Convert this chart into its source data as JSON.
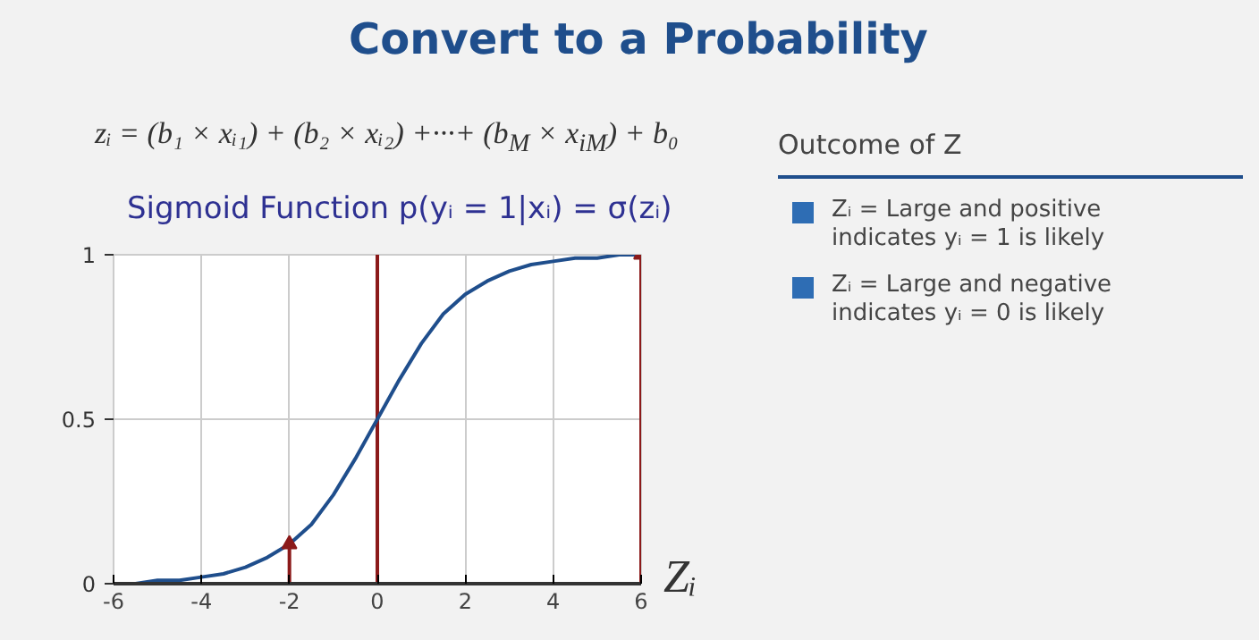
{
  "chart_data": {
    "type": "line",
    "title": "Convert to a Probability",
    "subtitle": "Sigmoid Function p(yᵢ = 1|xᵢ) = σ(zᵢ)",
    "xlabel": "Zᵢ",
    "annotations": [
      "zᵢ = (b₁ × xᵢ₁) + (b₂ × xᵢ₂) +···+ (b$_{M}$ × x$_{iM}$) + b₀",
      "Outcome of Z",
      "Zᵢ = Large and positive indicates yᵢ = 1 is likely",
      "Zᵢ = Large and negative indicates yᵢ = 0 is likely"
    ],
    "x": [
      -6,
      -5.5,
      -5,
      -4.5,
      -4,
      -3.5,
      -3,
      -2.5,
      -2,
      -1.5,
      -1,
      -0.5,
      0,
      0.5,
      1,
      1.5,
      2,
      2.5,
      3,
      3.5,
      4,
      4.5,
      5,
      5.5,
      6
    ],
    "series": [
      {
        "color": "#1f4e8c",
        "values": [
          0,
          0,
          0.01,
          0.01,
          0.02,
          0.03,
          0.05,
          0.08,
          0.12,
          0.18,
          0.27,
          0.38,
          0.5,
          0.62,
          0.73,
          0.82,
          0.88,
          0.92,
          0.95,
          0.97,
          0.98,
          0.99,
          0.99,
          1,
          1
        ]
      },
      {
        "type": "lollipop",
        "color": "#8b1a1a",
        "marker": "triangle",
        "x": [
          -2,
          6
        ],
        "values": [
          0.12,
          1
        ]
      }
    ],
    "xlim": [
      -6,
      6
    ],
    "ylim": [
      0,
      1
    ],
    "xticks": [
      -6,
      -4,
      -2,
      0,
      2,
      4,
      6
    ],
    "yticks": [
      0,
      0.5,
      1
    ],
    "ref_lines": [
      {
        "axis": "x",
        "value": 0,
        "color": "#8b1a1a"
      }
    ],
    "grid": true
  }
}
